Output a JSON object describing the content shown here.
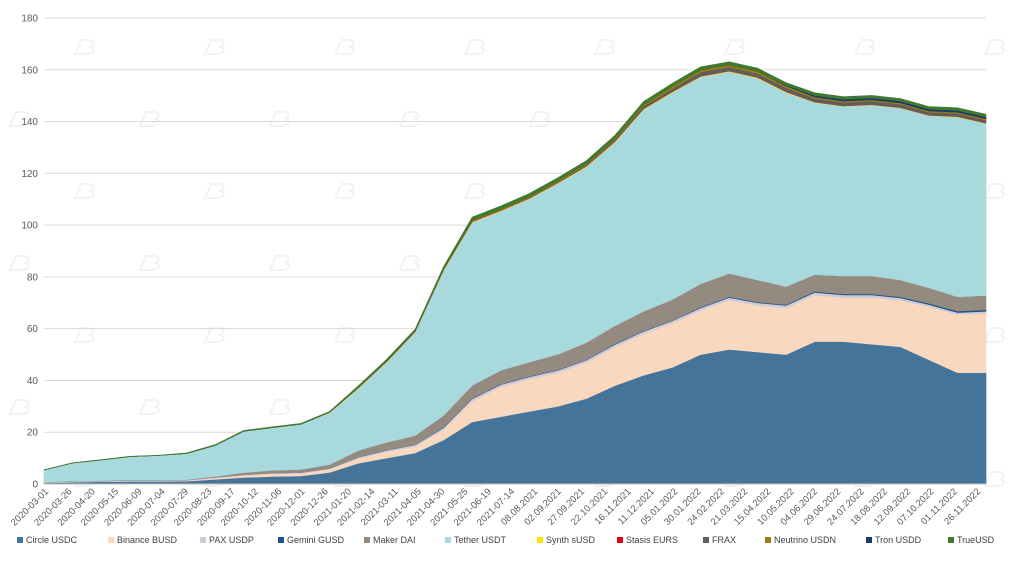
{
  "chart_data": {
    "type": "area",
    "stacked": true,
    "title": "",
    "xlabel": "",
    "ylabel": "",
    "ylim": [
      0,
      180
    ],
    "yticks": [
      0,
      20,
      40,
      60,
      80,
      100,
      120,
      140,
      160,
      180
    ],
    "grid": true,
    "legend_position": "bottom",
    "tick_labels": [
      "2020-03-01",
      "2020-03-26",
      "2020-04-20",
      "2020-05-15",
      "2020-06-09",
      "2020-07-04",
      "2020-07-29",
      "2020-08-23",
      "2020-09-17",
      "2020-10-12",
      "2020-11-06",
      "2020-12-01",
      "2020-12-26",
      "2021-01-20",
      "2021-02-14",
      "2021-03-11",
      "2021-04-05",
      "2021-04-30",
      "2021-05-25",
      "2021-06-19",
      "2021-07-14",
      "08.08.2021",
      "02.09.2021",
      "27.09.2021",
      "22.10.2021",
      "16.11.2021",
      "11.12.2021",
      "05.01.2022",
      "30.01.2022",
      "24.02.2022",
      "21.03.2022",
      "15.04.2022",
      "10.05.2022",
      "04.06.2022",
      "29.06.2022",
      "24.07.2022",
      "18.08.2022",
      "12.09.2022",
      "07.10.2022",
      "01.11.2022",
      "26.11.2022"
    ],
    "categories": [
      "2020-03-01",
      "2020-04-01",
      "2020-05-01",
      "2020-06-01",
      "2020-07-01",
      "2020-08-01",
      "2020-09-01",
      "2020-10-01",
      "2020-11-01",
      "2020-12-01",
      "2021-01-01",
      "2021-02-01",
      "2021-03-01",
      "2021-04-01",
      "2021-05-01",
      "2021-06-01",
      "2021-07-01",
      "2021-08-01",
      "2021-09-01",
      "2021-10-01",
      "2021-11-01",
      "2021-12-01",
      "2022-01-01",
      "2022-02-01",
      "2022-03-01",
      "2022-04-01",
      "2022-05-01",
      "2022-06-01",
      "2022-07-01",
      "2022-08-01",
      "2022-09-01",
      "2022-10-01",
      "2022-11-01",
      "2022-12-01"
    ],
    "series": [
      {
        "name": "Circle USDC",
        "color": "#44749a",
        "values": [
          0.4,
          0.7,
          0.9,
          1,
          1,
          1.1,
          1.8,
          2.5,
          2.9,
          3.1,
          4.5,
          8,
          10,
          12,
          17,
          24,
          26,
          28,
          30,
          33,
          38,
          42,
          45,
          50,
          52,
          51,
          50,
          55,
          55,
          54,
          53,
          48,
          43,
          43
        ]
      },
      {
        "name": "Binance BUSD",
        "color": "#f8d8bf",
        "values": [
          0.1,
          0.1,
          0.1,
          0.1,
          0.1,
          0.1,
          0.5,
          0.8,
          1,
          1,
          1.1,
          1.8,
          2.5,
          2.5,
          4,
          8,
          11.5,
          12.5,
          13,
          14,
          15,
          16,
          17,
          17,
          19,
          18,
          18,
          18,
          17,
          18,
          18,
          20.5,
          22.5,
          23
        ]
      },
      {
        "name": "PAX USDP",
        "color": "#d0cbd6",
        "values": [
          0.2,
          0.2,
          0.2,
          0.3,
          0.3,
          0.3,
          0.3,
          0.3,
          0.3,
          0.3,
          0.4,
          0.5,
          0.5,
          0.6,
          0.8,
          0.9,
          0.9,
          0.9,
          0.9,
          0.9,
          0.9,
          1,
          1,
          1,
          1,
          1,
          1,
          1,
          1,
          1,
          0.9,
          0.8,
          0.7,
          0.7
        ]
      },
      {
        "name": "Gemini GUSD",
        "color": "#1f5586",
        "values": [
          0,
          0,
          0,
          0,
          0,
          0,
          0,
          0,
          0,
          0,
          0,
          0.1,
          0.1,
          0.1,
          0.2,
          0.2,
          0.2,
          0.2,
          0.2,
          0.2,
          0.2,
          0.2,
          0.2,
          0.3,
          0.3,
          0.3,
          0.3,
          0.4,
          0.4,
          0.4,
          0.4,
          0.5,
          0.6,
          0.6
        ]
      },
      {
        "name": "Maker DAI",
        "color": "#948a80",
        "values": [
          0.1,
          0.1,
          0.1,
          0.1,
          0.1,
          0.2,
          0.3,
          0.8,
          1.1,
          1.2,
          1.5,
          2.5,
          3,
          3.5,
          4.5,
          5,
          5.3,
          5.5,
          6,
          6.5,
          7,
          7.5,
          8,
          9,
          9,
          8.5,
          7,
          6.5,
          7,
          7,
          6.5,
          6,
          5.5,
          5.5
        ]
      },
      {
        "name": "Tether USDT",
        "color": "#a8d9dc",
        "values": [
          4.6,
          7,
          8,
          9.1,
          9.5,
          10.1,
          12,
          16,
          16.5,
          17.5,
          20,
          24,
          31,
          40,
          56,
          63,
          61.5,
          63,
          66,
          68,
          71,
          78,
          80,
          80,
          78,
          78,
          75,
          66.5,
          65.5,
          66,
          66.5,
          66.5,
          69.5,
          66.5
        ]
      },
      {
        "name": "Synth sUSD",
        "color": "#ffe600",
        "values": [
          0,
          0,
          0,
          0,
          0,
          0,
          0,
          0,
          0,
          0,
          0.1,
          0.1,
          0.1,
          0.1,
          0.2,
          0.2,
          0.2,
          0.2,
          0.2,
          0.2,
          0.2,
          0.2,
          0.2,
          0.2,
          0.2,
          0.2,
          0.2,
          0.1,
          0.1,
          0.1,
          0.1,
          0.1,
          0.1,
          0.1
        ]
      },
      {
        "name": "Stasis EURS",
        "color": "#e60012",
        "values": [
          0,
          0,
          0,
          0,
          0,
          0,
          0,
          0,
          0,
          0,
          0.1,
          0.1,
          0.1,
          0.1,
          0.1,
          0.1,
          0.1,
          0.1,
          0.1,
          0.1,
          0.1,
          0.1,
          0.1,
          0.1,
          0.1,
          0.1,
          0.1,
          0.1,
          0.1,
          0.1,
          0.1,
          0.1,
          0.1,
          0.1
        ]
      },
      {
        "name": "FRAX",
        "color": "#5e5e5e",
        "values": [
          0,
          0,
          0,
          0,
          0,
          0,
          0,
          0,
          0,
          0,
          0,
          0.1,
          0.1,
          0.1,
          0.2,
          0.2,
          0.2,
          0.3,
          0.3,
          0.4,
          0.6,
          0.9,
          1.2,
          1.5,
          1.5,
          1.5,
          1.4,
          1.3,
          1.3,
          1.3,
          1.2,
          1.1,
          1.1,
          1.1
        ]
      },
      {
        "name": "Neutrino USDN",
        "color": "#a07c10",
        "values": [
          0,
          0,
          0,
          0,
          0,
          0,
          0,
          0,
          0,
          0,
          0,
          0.1,
          0.1,
          0.1,
          0.2,
          0.3,
          0.3,
          0.3,
          0.4,
          0.4,
          0.5,
          0.6,
          0.8,
          0.8,
          0.8,
          0.8,
          0.7,
          0.6,
          0.5,
          0.5,
          0.5,
          0.5,
          0.5,
          0.5
        ]
      },
      {
        "name": "Tron USDD",
        "color": "#1b3a6b",
        "values": [
          0,
          0,
          0,
          0,
          0,
          0,
          0,
          0,
          0,
          0,
          0,
          0,
          0,
          0,
          0,
          0,
          0,
          0,
          0,
          0,
          0,
          0,
          0,
          0,
          0,
          0,
          0.3,
          0.6,
          0.7,
          0.7,
          0.7,
          0.7,
          0.7,
          0.7
        ]
      },
      {
        "name": "TrueUSD",
        "color": "#3f7a2f",
        "values": [
          0.1,
          0.1,
          0.1,
          0.1,
          0.1,
          0.2,
          0.3,
          0.3,
          0.3,
          0.3,
          0.3,
          0.5,
          0.6,
          0.7,
          0.8,
          1.2,
          1.2,
          1.2,
          1.2,
          1.2,
          1.2,
          1.2,
          1.2,
          1.2,
          1.2,
          1.2,
          1,
          1,
          1,
          1,
          1,
          1,
          1,
          1
        ]
      }
    ]
  }
}
